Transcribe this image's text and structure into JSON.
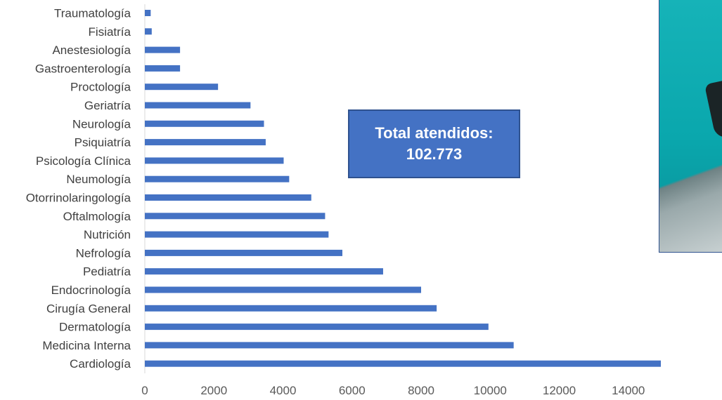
{
  "chart_data": {
    "type": "bar",
    "orientation": "horizontal",
    "categories": [
      "Traumatología",
      "Fisiatría",
      "Anestesiología",
      "Gastroenterología",
      "Proctología",
      "Geriatría",
      "Neurología",
      "Psiquiatría",
      "Psicología Clínica",
      "Neumología",
      "Otorrinolaringología",
      "Oftalmología",
      "Nutrición",
      "Nefrología",
      "Pediatría",
      "Endocrinología",
      "Cirugía General",
      "Dermatología",
      "Medicina Interna",
      "Cardiología"
    ],
    "values": [
      170,
      200,
      1020,
      1020,
      2120,
      3060,
      3450,
      3500,
      4020,
      4180,
      4820,
      5220,
      5320,
      5720,
      6900,
      8000,
      8450,
      9950,
      10680,
      15100
    ],
    "xlim": [
      0,
      16000
    ],
    "xticks": [
      0,
      2000,
      4000,
      6000,
      8000,
      10000,
      12000,
      14000,
      16000
    ],
    "grid": false,
    "colors": {
      "bar": "#4472c4"
    }
  },
  "callout": {
    "line1": "Total atendidos:",
    "line2": "102.773"
  },
  "photo": {
    "icon": "photo-image"
  }
}
